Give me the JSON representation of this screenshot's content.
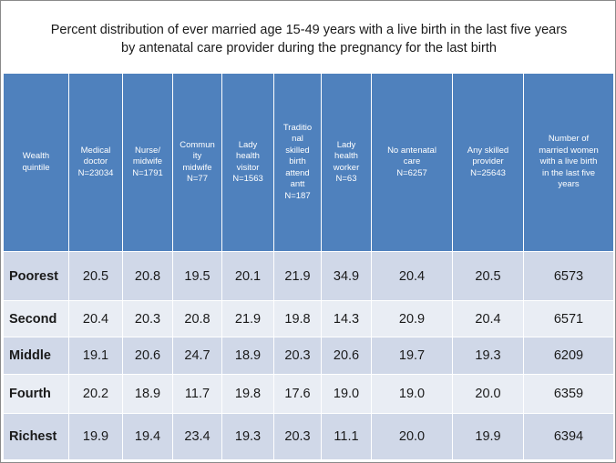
{
  "title": {
    "line1": "Percent distribution of ever married age 15-49 years with a live birth in the last five years",
    "line2": "by antenatal care provider during the pregnancy for the last birth"
  },
  "table": {
    "headers": [
      [
        "Wealth",
        "quintile"
      ],
      [
        "Medical",
        "doctor",
        "N=23034"
      ],
      [
        "Nurse/",
        "midwife",
        "N=1791"
      ],
      [
        "Commun",
        "ity",
        "midwife",
        "N=77"
      ],
      [
        "Lady",
        "health",
        "visitor",
        "N=1563"
      ],
      [
        "Traditio",
        "nal",
        "skilled",
        "birth",
        "attend",
        "antt",
        "N=187"
      ],
      [
        "Lady",
        "health",
        "worker",
        "N=63"
      ],
      [
        "No antenatal",
        "care",
        "N=6257"
      ],
      [
        "Any skilled",
        "provider",
        "N=25643"
      ],
      [
        "Number of",
        "married women",
        "with a live birth",
        "in the last five",
        "years"
      ]
    ],
    "rows": [
      {
        "label": "Poorest",
        "values": [
          "20.5",
          "20.8",
          "19.5",
          "20.1",
          "21.9",
          "34.9",
          "20.4",
          "20.5",
          "6573"
        ]
      },
      {
        "label": "Second",
        "values": [
          "20.4",
          "20.3",
          "20.8",
          "21.9",
          "19.8",
          "14.3",
          "20.9",
          "20.4",
          "6571"
        ]
      },
      {
        "label": "Middle",
        "values": [
          "19.1",
          "20.6",
          "24.7",
          "18.9",
          "20.3",
          "20.6",
          "19.7",
          "19.3",
          "6209"
        ]
      },
      {
        "label": "Fourth",
        "values": [
          "20.2",
          "18.9",
          "11.7",
          "19.8",
          "17.6",
          "19.0",
          "19.0",
          "20.0",
          "6359"
        ]
      },
      {
        "label": "Richest",
        "values": [
          "19.9",
          "19.4",
          "23.4",
          "19.3",
          "20.3",
          "11.1",
          "20.0",
          "19.9",
          "6394"
        ]
      }
    ]
  },
  "colors": {
    "header_bg": "#4f81bd",
    "row_band_dark": "#d0d8e8",
    "row_band_light": "#e9edf4"
  }
}
